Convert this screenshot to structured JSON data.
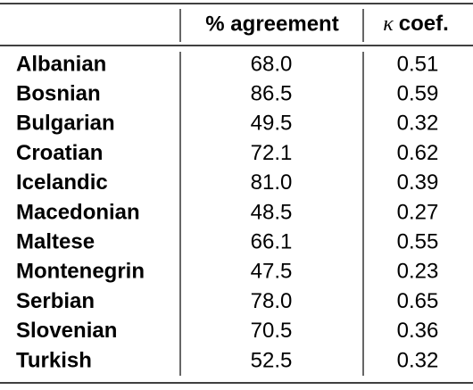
{
  "table": {
    "header": {
      "agreement": "% agreement",
      "kappa": {
        "symbol": "κ",
        "text": "coef."
      }
    },
    "rows": [
      [
        "Albanian",
        "68.0",
        "0.51"
      ],
      [
        "Bosnian",
        "86.5",
        "0.59"
      ],
      [
        "Bulgarian",
        "49.5",
        "0.32"
      ],
      [
        "Croatian",
        "72.1",
        "0.62"
      ],
      [
        "Icelandic",
        "81.0",
        "0.39"
      ],
      [
        "Macedonian",
        "48.5",
        "0.27"
      ],
      [
        "Maltese",
        "66.1",
        "0.55"
      ],
      [
        "Montenegrin",
        "47.5",
        "0.23"
      ],
      [
        "Serbian",
        "78.0",
        "0.65"
      ],
      [
        "Slovenian",
        "70.5",
        "0.36"
      ],
      [
        "Turkish",
        "52.5",
        "0.32"
      ]
    ]
  }
}
